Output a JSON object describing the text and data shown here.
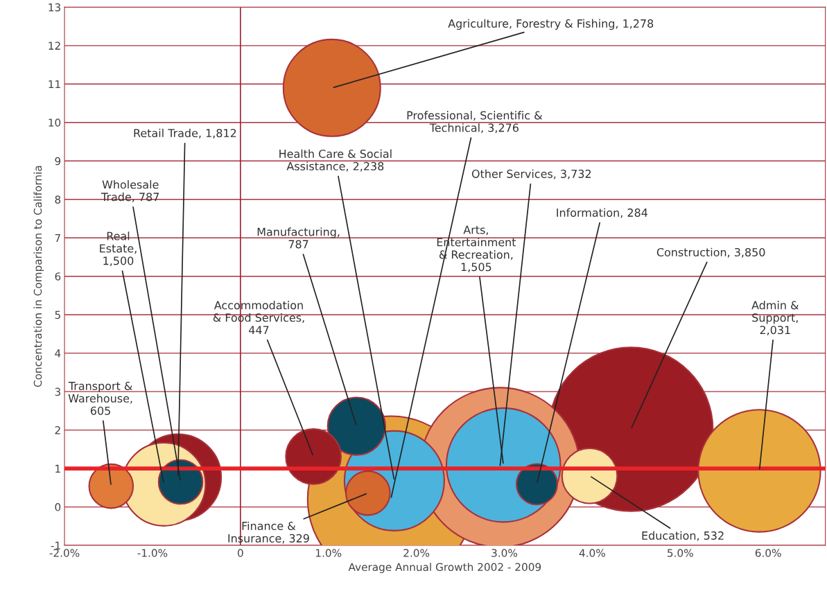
{
  "chart_data": {
    "type": "bubble",
    "xlabel": "Average Annual Growth 2002 - 2009",
    "ylabel": "Concentration in Comparison to California",
    "xlim": [
      -2.0,
      6.65
    ],
    "xticks": [
      {
        "value": -2,
        "label": "-2.0%"
      },
      {
        "value": -1,
        "label": "-1.0%"
      },
      0,
      {
        "value": 1,
        "label": "1.0%"
      },
      {
        "value": 2,
        "label": "2.0%"
      },
      {
        "value": 3,
        "label": "3.0%"
      },
      {
        "value": 4,
        "label": "4.0%"
      },
      {
        "value": 5,
        "label": "5.0%"
      },
      {
        "value": 6,
        "label": "6.0%"
      }
    ],
    "ylim": [
      -1,
      13
    ],
    "yticks": [
      -1,
      0,
      1,
      2,
      3,
      4,
      5,
      6,
      7,
      8,
      9,
      10,
      11,
      12,
      13
    ],
    "grid": "y",
    "legend": false,
    "ref_lines": [
      {
        "axis": "x",
        "value": 0,
        "color": "#9b2335"
      },
      {
        "axis": "y",
        "value": 1,
        "color": "#e8232a"
      }
    ],
    "series": [
      {
        "name": "Construction, 3,850",
        "color": "#9b1c22",
        "x": [
          4.44
        ],
        "values": [
          2.02
        ],
        "sizes": [
          0.97
        ]
      },
      {
        "name": "Professional, Scientific &\nTechnical, 3,276",
        "color": "#e6a23c",
        "x": [
          1.71
        ],
        "values": [
          0.2
        ],
        "sizes": [
          1.0
        ]
      },
      {
        "name": "Other Services, 3,732",
        "color": "#e8956a",
        "x": [
          2.95
        ],
        "values": [
          1.03
        ],
        "sizes": [
          0.92
        ]
      },
      {
        "name": "Admin &\nSupport,\n2,031",
        "color": "#e8a93e",
        "x": [
          5.9
        ],
        "values": [
          0.94
        ],
        "sizes": [
          0.54
        ]
      },
      {
        "name": "Agriculture, Forestry & Fishing, 1,278",
        "color": "#d4682e",
        "x": [
          1.04
        ],
        "values": [
          10.9
        ],
        "sizes": [
          0.34
        ]
      },
      {
        "name": "Retail Trade, 1,812",
        "color": "#9b1c22",
        "x": [
          -0.71
        ],
        "values": [
          0.77
        ],
        "sizes": [
          0.27
        ]
      },
      {
        "name": "Real\nEstate,\n1,500",
        "color": "#fbe3a2",
        "x": [
          -0.87
        ],
        "values": [
          0.59
        ],
        "sizes": [
          0.25
        ]
      },
      {
        "name": "Transport &\nWarehouse,\n605",
        "color": "#e07b39",
        "x": [
          -1.47
        ],
        "values": [
          0.54
        ],
        "sizes": [
          0.07
        ]
      },
      {
        "name": "Wholesale\nTrade, 787",
        "color": "#0b4a5e",
        "x": [
          -0.68
        ],
        "values": [
          0.65
        ],
        "sizes": [
          0.07
        ]
      },
      {
        "name": "Health Care & Social\nAssistance, 2,238",
        "color": "#4bb3dc",
        "x": [
          1.75
        ],
        "values": [
          0.68
        ],
        "sizes": [
          0.36
        ]
      },
      {
        "name": "Arts,\nEntertainment\n& Recreation,\n1,505",
        "color": "#4bb3dc",
        "x": [
          2.99
        ],
        "values": [
          1.09
        ],
        "sizes": [
          0.47
        ]
      },
      {
        "name": "Manufacturing,\n787",
        "color": "#0b4a5e",
        "x": [
          1.32
        ],
        "values": [
          2.1
        ],
        "sizes": [
          0.12
        ]
      },
      {
        "name": "Accommodation\n& Food Services,\n447",
        "color": "#9b1c22",
        "x": [
          0.83
        ],
        "values": [
          1.31
        ],
        "sizes": [
          0.11
        ]
      },
      {
        "name": "Finance &\nInsurance, 329",
        "color": "#d4682e",
        "x": [
          1.45
        ],
        "values": [
          0.36
        ],
        "sizes": [
          0.07
        ]
      },
      {
        "name": "Information, 284",
        "color": "#0b4a5e",
        "x": [
          3.37
        ],
        "values": [
          0.59
        ],
        "sizes": [
          0.06
        ]
      },
      {
        "name": "Education, 532",
        "color": "#fbe3a2",
        "x": [
          3.97
        ],
        "values": [
          0.81
        ],
        "sizes": [
          0.11
        ]
      }
    ]
  }
}
